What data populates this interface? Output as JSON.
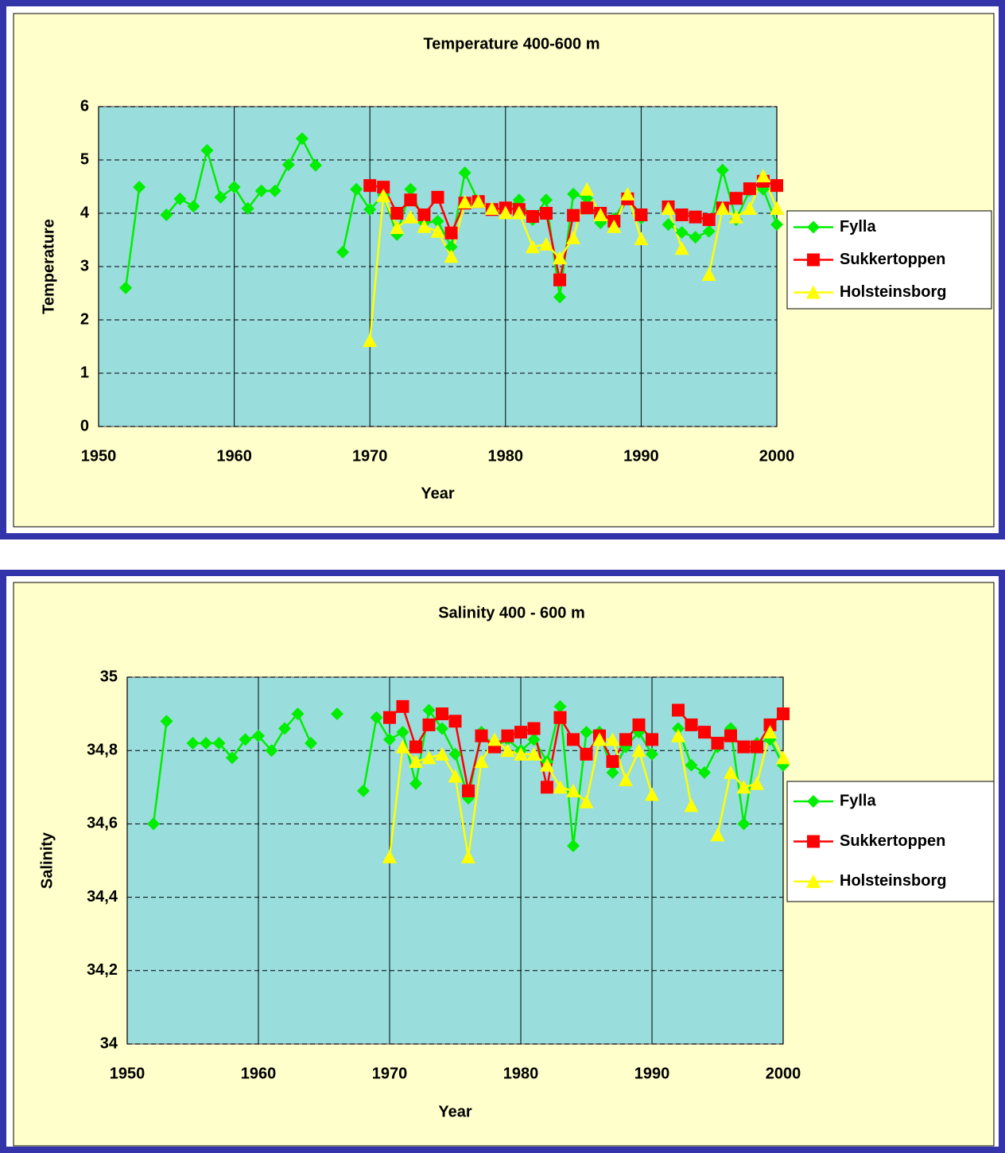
{
  "chart_data": [
    {
      "type": "line",
      "title": "Temperature 400-600 m",
      "x_label": "Year",
      "y_label": "Temperature",
      "x": [
        1952,
        1953,
        1954,
        1955,
        1956,
        1957,
        1958,
        1959,
        1960,
        1961,
        1962,
        1963,
        1964,
        1965,
        1966,
        1967,
        1968,
        1969,
        1970,
        1971,
        1972,
        1973,
        1974,
        1975,
        1976,
        1977,
        1978,
        1979,
        1980,
        1981,
        1982,
        1983,
        1984,
        1985,
        1986,
        1987,
        1988,
        1989,
        1990,
        1991,
        1992,
        1993,
        1994,
        1995,
        1996,
        1997,
        1998,
        1999,
        2000
      ],
      "xlim": [
        1950,
        2000
      ],
      "xticks": [
        1950,
        1960,
        1970,
        1980,
        1990,
        2000
      ],
      "ylim": [
        0,
        6
      ],
      "yticks": [
        0,
        1,
        2,
        3,
        4,
        5,
        6
      ],
      "grid": true,
      "series": [
        {
          "name": "Fylla",
          "color": "#00ee00",
          "marker": "diamond",
          "values": [
            2.6,
            4.49,
            null,
            3.97,
            4.27,
            4.13,
            5.18,
            4.3,
            4.49,
            4.09,
            4.42,
            4.42,
            4.91,
            5.4,
            4.9,
            null,
            3.27,
            4.45,
            4.07,
            4.34,
            3.6,
            4.45,
            3.82,
            3.85,
            3.37,
            4.76,
            4.22,
            4.09,
            4.09,
            4.25,
            3.88,
            4.25,
            2.43,
            4.36,
            4.28,
            3.82,
            3.9,
            4.3,
            3.91,
            null,
            3.79,
            3.64,
            3.55,
            3.66,
            4.81,
            3.88,
            4.43,
            4.45,
            3.79
          ]
        },
        {
          "name": "Sukkertoppen",
          "color": "#ff0000",
          "marker": "square",
          "values": [
            null,
            null,
            null,
            null,
            null,
            null,
            null,
            null,
            null,
            null,
            null,
            null,
            null,
            null,
            null,
            null,
            null,
            null,
            4.52,
            4.49,
            4.0,
            4.25,
            3.97,
            4.3,
            3.63,
            4.19,
            4.22,
            4.07,
            4.1,
            4.07,
            3.94,
            4.0,
            2.75,
            3.96,
            4.1,
            4.0,
            3.85,
            4.27,
            3.97,
            null,
            4.12,
            3.97,
            3.93,
            3.88,
            4.1,
            4.28,
            4.46,
            4.6,
            4.52
          ]
        },
        {
          "name": "Holsteinsborg",
          "color": "#ffff00",
          "marker": "triangle",
          "values": [
            null,
            null,
            null,
            null,
            null,
            null,
            null,
            null,
            null,
            null,
            null,
            null,
            null,
            null,
            null,
            null,
            null,
            null,
            1.61,
            4.33,
            3.73,
            3.93,
            3.75,
            3.66,
            3.19,
            4.21,
            4.22,
            4.09,
            4.01,
            4.01,
            3.37,
            3.42,
            3.16,
            3.54,
            4.45,
            3.97,
            3.75,
            4.36,
            3.52,
            null,
            4.09,
            3.34,
            null,
            2.85,
            4.09,
            3.93,
            4.09,
            4.7,
            4.09
          ]
        }
      ]
    },
    {
      "type": "line",
      "title": "Salinity 400 - 600 m",
      "x_label": "Year",
      "y_label": "Salinity",
      "x": [
        1952,
        1953,
        1954,
        1955,
        1956,
        1957,
        1958,
        1959,
        1960,
        1961,
        1962,
        1963,
        1964,
        1965,
        1966,
        1967,
        1968,
        1969,
        1970,
        1971,
        1972,
        1973,
        1974,
        1975,
        1976,
        1977,
        1978,
        1979,
        1980,
        1981,
        1982,
        1983,
        1984,
        1985,
        1986,
        1987,
        1988,
        1989,
        1990,
        1991,
        1992,
        1993,
        1994,
        1995,
        1996,
        1997,
        1998,
        1999,
        2000
      ],
      "xlim": [
        1950,
        2000
      ],
      "xticks": [
        1950,
        1960,
        1970,
        1980,
        1990,
        2000
      ],
      "ylim": [
        34,
        35
      ],
      "yticks": [
        34,
        {
          "value": 34.2,
          "label": "34,2"
        },
        {
          "value": 34.4,
          "label": "34,4"
        },
        {
          "value": 34.6,
          "label": "34,6"
        },
        {
          "value": 34.8,
          "label": "34,8"
        },
        35
      ],
      "grid": true,
      "series": [
        {
          "name": "Fylla",
          "color": "#00ee00",
          "marker": "diamond",
          "values": [
            34.6,
            34.88,
            null,
            34.82,
            34.82,
            34.82,
            34.78,
            34.83,
            34.84,
            34.8,
            34.86,
            34.9,
            34.82,
            null,
            34.9,
            null,
            34.69,
            34.89,
            34.83,
            34.85,
            34.71,
            34.91,
            34.86,
            34.79,
            34.67,
            34.85,
            34.81,
            34.83,
            34.8,
            34.83,
            34.77,
            34.92,
            34.54,
            34.85,
            34.85,
            34.74,
            34.81,
            34.85,
            34.79,
            null,
            34.86,
            34.76,
            34.74,
            34.81,
            34.86,
            34.6,
            34.82,
            34.83,
            34.76
          ]
        },
        {
          "name": "Sukkertoppen",
          "color": "#ff0000",
          "marker": "square",
          "values": [
            null,
            null,
            null,
            null,
            null,
            null,
            null,
            null,
            null,
            null,
            null,
            null,
            null,
            null,
            null,
            null,
            null,
            null,
            34.89,
            34.92,
            34.81,
            34.87,
            34.9,
            34.88,
            34.69,
            34.84,
            34.81,
            34.84,
            34.85,
            34.86,
            34.7,
            34.89,
            34.83,
            34.79,
            34.84,
            34.77,
            34.83,
            34.87,
            34.83,
            null,
            34.91,
            34.87,
            34.85,
            34.82,
            34.84,
            34.81,
            34.81,
            34.87,
            34.9
          ]
        },
        {
          "name": "Holsteinsborg",
          "color": "#ffff00",
          "marker": "triangle",
          "values": [
            null,
            null,
            null,
            null,
            null,
            null,
            null,
            null,
            null,
            null,
            null,
            null,
            null,
            null,
            null,
            null,
            null,
            null,
            34.51,
            34.81,
            34.77,
            34.78,
            34.79,
            34.73,
            34.51,
            34.77,
            34.83,
            34.8,
            34.79,
            34.79,
            34.76,
            34.7,
            34.69,
            34.66,
            34.83,
            34.83,
            34.72,
            34.8,
            34.68,
            null,
            34.84,
            34.65,
            null,
            34.57,
            34.74,
            34.7,
            34.71,
            34.85,
            34.78
          ]
        }
      ]
    }
  ]
}
